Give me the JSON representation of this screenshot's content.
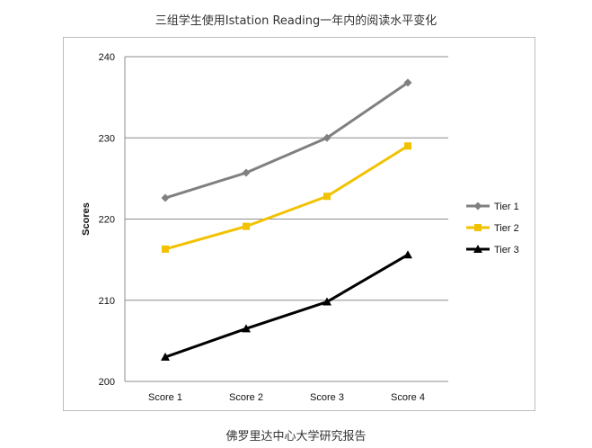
{
  "title": "三组学生使用Istation Reading一年内的阅读水平变化",
  "source": "佛罗里达中心大学研究报告",
  "chart_data": {
    "type": "line",
    "title": "三组学生使用Istation Reading一年内的阅读水平变化",
    "xlabel": "",
    "ylabel": "Scores",
    "categories": [
      "Score 1",
      "Score 2",
      "Score 3",
      "Score 4"
    ],
    "ylim": [
      200,
      240
    ],
    "yticks": [
      200,
      210,
      220,
      230,
      240
    ],
    "grid": true,
    "legend_position": "right",
    "series": [
      {
        "name": "Tier 1",
        "values": [
          222.6,
          225.7,
          230.0,
          236.8
        ],
        "color": "#808080",
        "marker": "diamond"
      },
      {
        "name": "Tier 2",
        "values": [
          216.3,
          219.1,
          222.8,
          229.0
        ],
        "color": "#F2C200",
        "marker": "square"
      },
      {
        "name": "Tier 3",
        "values": [
          203.0,
          206.5,
          209.8,
          215.6
        ],
        "color": "#000000",
        "marker": "triangle"
      }
    ]
  }
}
